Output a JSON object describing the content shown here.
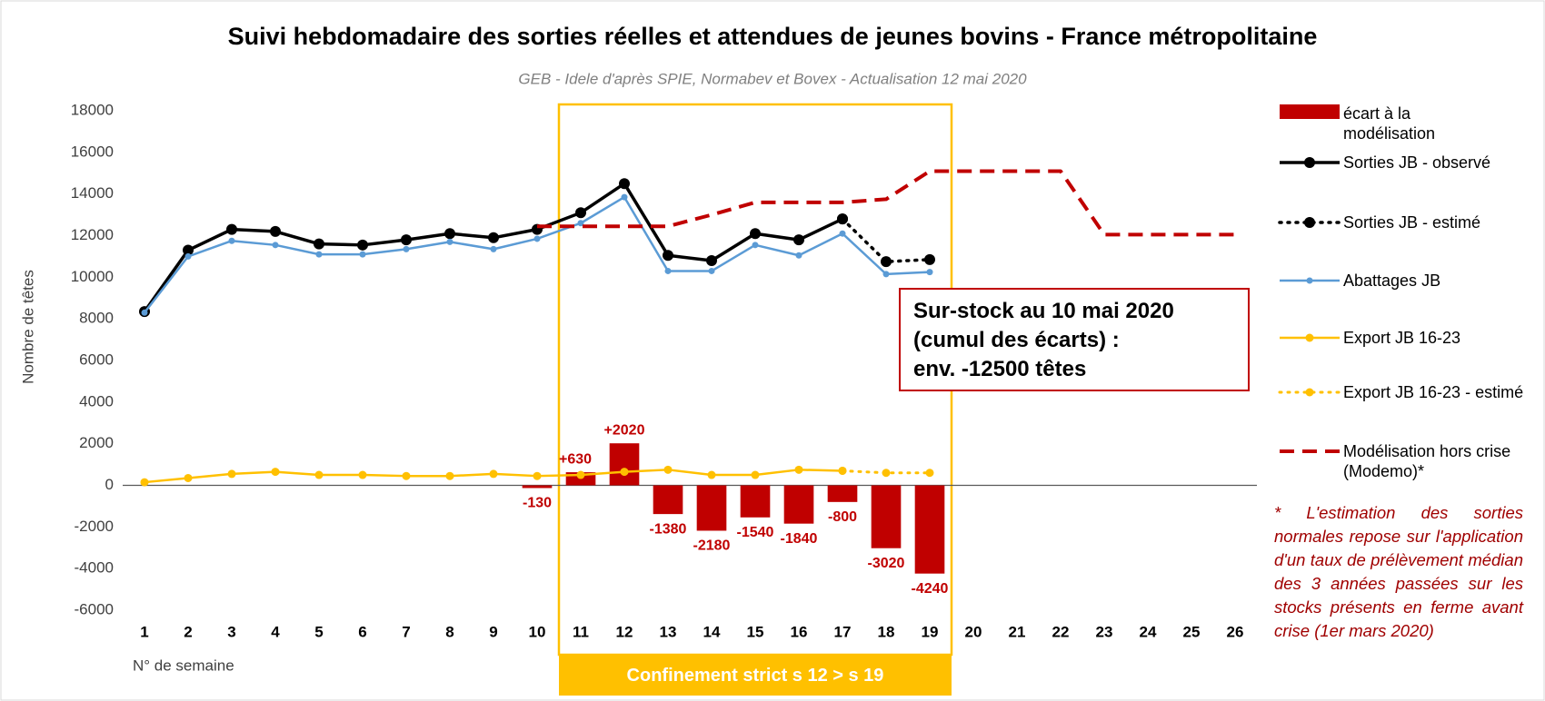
{
  "chart_data": {
    "type": "bar_line",
    "title": "Suivi hebdomadaire des sorties réelles et attendues de jeunes bovins - France métropolitaine",
    "subtitle": "GEB - Idele d'après SPIE, Normabev et Bovex - Actualisation 12 mai 2020",
    "y_label": "Nombre de têtes",
    "x_label": "N° de semaine",
    "categories": [
      "1",
      "2",
      "3",
      "4",
      "5",
      "6",
      "7",
      "8",
      "9",
      "10",
      "11",
      "12",
      "13",
      "14",
      "15",
      "16",
      "17",
      "18",
      "19",
      "20",
      "21",
      "22",
      "23",
      "24",
      "25",
      "26"
    ],
    "ylim": [
      -6000,
      18000
    ],
    "yticks": [
      -6000,
      -4000,
      -2000,
      0,
      2000,
      4000,
      6000,
      8000,
      10000,
      12000,
      14000,
      16000,
      18000
    ],
    "grid": false,
    "legend": "right",
    "series": [
      {
        "name": "écart à la modélisation",
        "type": "bar",
        "color": "#c00000",
        "values": [
          null,
          null,
          null,
          null,
          null,
          null,
          null,
          null,
          null,
          -130,
          630,
          2020,
          -1380,
          -2180,
          -1540,
          -1840,
          -800,
          -3020,
          -4240,
          null,
          null,
          null,
          null,
          null,
          null,
          null
        ],
        "value_labels": [
          null,
          null,
          null,
          null,
          null,
          null,
          null,
          null,
          null,
          "-130",
          "+630",
          "+2020",
          "-1380",
          "-2180",
          "-1540",
          "-1840",
          "-800",
          "-3020",
          "-4240",
          null,
          null,
          null,
          null,
          null,
          null,
          null
        ]
      },
      {
        "name": "Sorties JB - observé",
        "type": "line",
        "color": "#000000",
        "dash": "solid",
        "marker": 6,
        "width": 3.5,
        "values": [
          8350,
          11300,
          12300,
          12200,
          11600,
          11550,
          11800,
          12100,
          11900,
          12300,
          13100,
          14500,
          11050,
          10800,
          12100,
          11800,
          12800,
          null,
          null,
          null,
          null,
          null,
          null,
          null,
          null,
          null
        ]
      },
      {
        "name": "Sorties JB - estimé",
        "type": "line",
        "color": "#000000",
        "dash": "dotted",
        "marker": 6,
        "width": 3.5,
        "values": [
          null,
          null,
          null,
          null,
          null,
          null,
          null,
          null,
          null,
          null,
          null,
          null,
          null,
          null,
          null,
          null,
          12800,
          10750,
          10850,
          null,
          null,
          null,
          null,
          null,
          null,
          null
        ]
      },
      {
        "name": "Abattages JB",
        "type": "line",
        "color": "#5b9bd5",
        "dash": "solid",
        "marker": 3.5,
        "width": 2.5,
        "values": [
          8300,
          11000,
          11750,
          11550,
          11100,
          11100,
          11350,
          11700,
          11350,
          11850,
          12600,
          13850,
          10300,
          10300,
          11550,
          11050,
          12100,
          10150,
          10250,
          null,
          null,
          null,
          null,
          null,
          null,
          null
        ]
      },
      {
        "name": "Export JB 16-23",
        "type": "line",
        "color": "#ffc000",
        "dash": "solid",
        "marker": 4.5,
        "width": 2.5,
        "values": [
          150,
          350,
          550,
          650,
          500,
          500,
          450,
          450,
          550,
          450,
          500,
          650,
          750,
          500,
          500,
          750,
          700,
          null,
          null,
          null,
          null,
          null,
          null,
          null,
          null,
          null
        ]
      },
      {
        "name": "Export JB 16-23 - estimé",
        "type": "line",
        "color": "#ffc000",
        "dash": "dotted",
        "marker": 4.5,
        "width": 3,
        "values": [
          null,
          null,
          null,
          null,
          null,
          null,
          null,
          null,
          null,
          null,
          null,
          null,
          null,
          null,
          null,
          null,
          700,
          600,
          600,
          null,
          null,
          null,
          null,
          null,
          null,
          null
        ]
      },
      {
        "name": "Modélisation hors crise (Modemo)*",
        "type": "line",
        "color": "#c00000",
        "dash": "dashed",
        "marker": 0,
        "width": 4,
        "values": [
          null,
          null,
          null,
          null,
          null,
          null,
          null,
          null,
          null,
          12450,
          12450,
          12450,
          12450,
          13000,
          13600,
          13600,
          13600,
          13750,
          15100,
          15100,
          15100,
          15100,
          12050,
          12050,
          12050,
          12050
        ]
      }
    ],
    "annotations": {
      "box_lines": [
        "Sur-stock au 10 mai 2020",
        "(cumul des écarts) :",
        "env. -12500 têtes"
      ],
      "confinement": "Confinement strict s 12 > s 19",
      "footnote": "* L'estimation des sorties normales repose sur l'application d'un taux de prélèvement médian des 3 années passées sur les stocks présents en ferme avant crise (1er mars 2020)"
    }
  }
}
